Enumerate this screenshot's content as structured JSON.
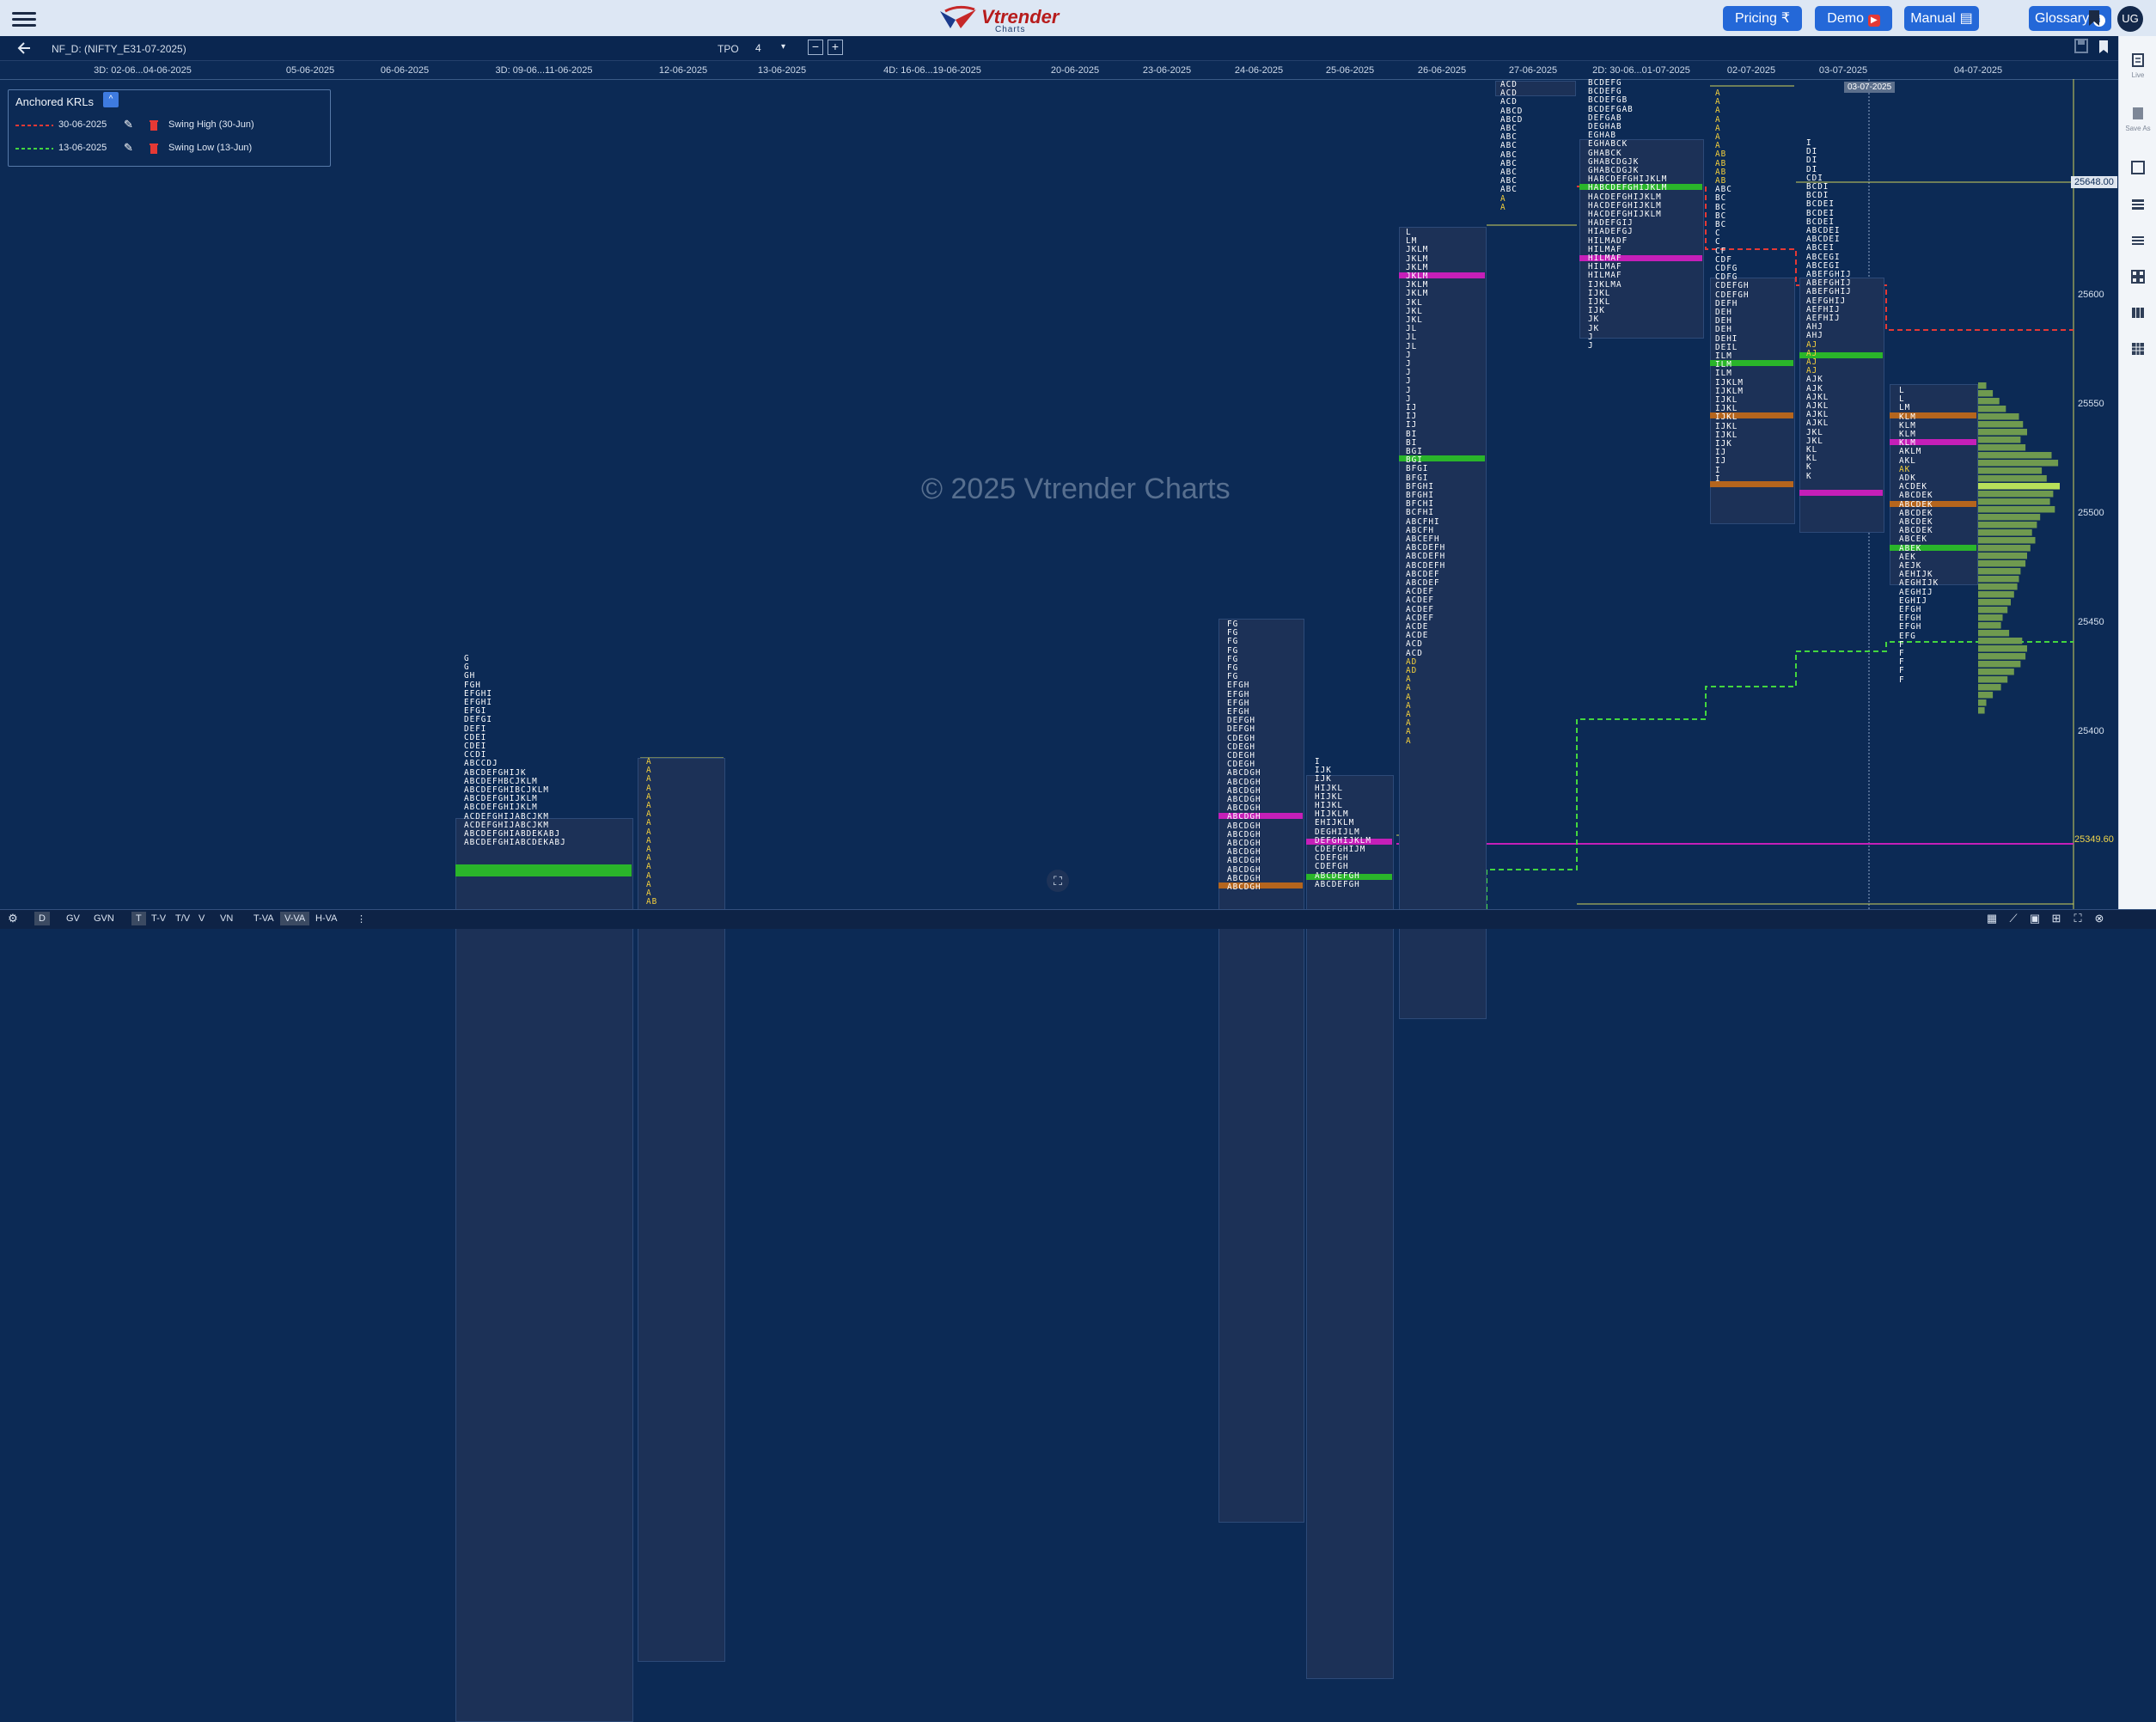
{
  "header": {
    "logo_text": "Vtrender",
    "logo_sub": "Charts",
    "nav_buttons": [
      {
        "label": "Pricing",
        "icon": "rupee-icon",
        "glyph": "₹"
      },
      {
        "label": "Demo",
        "icon": "youtube-icon",
        "glyph": "▶"
      },
      {
        "label": "Manual",
        "icon": "book-icon",
        "glyph": "▤"
      },
      {
        "label": "Glossary",
        "icon": "info-icon",
        "glyph": "i"
      }
    ],
    "avatar": "UG"
  },
  "toolbar": {
    "symbol": "NF_D: (NIFTY_E31-07-2025)",
    "tpo_label": "TPO",
    "tpo_value": "4",
    "dropdown_glyph": "▾",
    "minus": "−",
    "plus": "+"
  },
  "date_axis": [
    "3D: 02-06...04-06-2025",
    "05-06-2025",
    "06-06-2025",
    "3D: 09-06...11-06-2025",
    "12-06-2025",
    "13-06-2025",
    "4D: 16-06...19-06-2025",
    "20-06-2025",
    "23-06-2025",
    "24-06-2025",
    "25-06-2025",
    "26-06-2025",
    "27-06-2025",
    "2D: 30-06...01-07-2025",
    "02-07-2025",
    "03-07-2025",
    "04-07-2025"
  ],
  "cursor_date": "03-07-2025",
  "price_axis": {
    "ticks": [
      "25600",
      "25550",
      "25500",
      "25450",
      "25400"
    ],
    "highlight_prices": [
      "25648.00",
      "25349.60"
    ]
  },
  "anchored_krls": {
    "title": "Anchored KRLs",
    "collapse_glyph": "^",
    "rows": [
      {
        "date": "30-06-2025",
        "label": "Swing High (30-Jun)",
        "color": "#e53935"
      },
      {
        "date": "13-06-2025",
        "label": "Swing Low (13-Jun)",
        "color": "#43d63f"
      }
    ]
  },
  "watermark": "© 2025 Vtrender Charts",
  "right_panel": [
    {
      "icon": "live-icon",
      "label": "Live"
    },
    {
      "icon": "save-as-icon",
      "label": "Save As"
    },
    {
      "icon": "square-icon",
      "label": ""
    },
    {
      "icon": "layout-icon",
      "label": ""
    },
    {
      "icon": "list-icon",
      "label": ""
    },
    {
      "icon": "grid-icon",
      "label": ""
    },
    {
      "icon": "columns-icon",
      "label": ""
    },
    {
      "icon": "table-icon",
      "label": ""
    }
  ],
  "bottom_bar": {
    "buttons": [
      "D",
      "GV",
      "GVN",
      "T",
      "T-V",
      "T/V",
      "V",
      "VN",
      "T-VA",
      "V-VA",
      "H-VA"
    ],
    "active": [
      "D",
      "V-VA"
    ],
    "more": "⋮"
  },
  "profiles": [
    {
      "id": "p-0906",
      "rows": [
        "G",
        "G",
        "GH",
        "FGH",
        "EFGHI",
        "EFGHI",
        "EFGI",
        "DEFGI",
        "DEFI",
        "CDEI",
        "CDEI",
        "CCDI",
        "ABCCDJ",
        "ABCDEFGHIJK",
        "ABCDEFHBCJKLM",
        "ABCDEFGHIBCJKLM",
        "ABCDEFGHIJKLM",
        "ABCDEFGHIJKLM",
        "ACDEFGHIJABCJKM",
        "ACDEFGHIJABCJKM",
        "ABCDEFGHIABDEKABJ",
        "ABCDEFGHIABCDEKABJ"
      ]
    },
    {
      "id": "p-1206",
      "rows": [
        "A",
        "A",
        "A",
        "A",
        "A",
        "A",
        "A",
        "A",
        "A",
        "A",
        "A",
        "A",
        "A",
        "A",
        "A",
        "A",
        "AB",
        "AB",
        "AB"
      ]
    },
    {
      "id": "p-2406",
      "rows": [
        "FG",
        "FG",
        "FG",
        "FG",
        "FG",
        "FG",
        "FG",
        "EFGH",
        "EFGH",
        "EFGH",
        "EFGH",
        "DEFGH",
        "DEFGH",
        "CDEGH",
        "CDEGH",
        "CDEGH",
        "CDEGH",
        "ABCDGH",
        "ABCDGH",
        "ABCDGH",
        "ABCDGH",
        "ABCDGH",
        "ABCDGH",
        "ABCDGH",
        "ABCDGH",
        "ABCDGH",
        "ABCDGH",
        "ABCDGH",
        "ABCDGH",
        "ABCDGH",
        "ABCDGH"
      ]
    },
    {
      "id": "p-2506",
      "rows": [
        "I",
        "IJK",
        "IJK",
        "HIJKL",
        "HIJKL",
        "HIJKL",
        "HIJKLM",
        "EHIJKLM",
        "DEGHIJLM",
        "DEFGHIJKLM",
        "CDEFGHIJM",
        "CDEFGH",
        "CDEFGH",
        "ABCDEFGH",
        "ABCDEFGH"
      ]
    },
    {
      "id": "p-2606",
      "rows": [
        "L",
        "LM",
        "JKLM",
        "JKLM",
        "JKLM",
        "JKLM",
        "JKLM",
        "JKLM",
        "JKL",
        "JKL",
        "JKL",
        "JL",
        "JL",
        "JL",
        "J",
        "J",
        "J",
        "J",
        "J",
        "J",
        "IJ",
        "IJ",
        "IJ",
        "BI",
        "BI",
        "BGI",
        "BGI",
        "BFGI",
        "BFGI",
        "BFGHI",
        "BFGHI",
        "BFCHI",
        "BCFHI",
        "ABCFHI",
        "ABCFH",
        "ABCEFH",
        "ABCDEFH",
        "ABCDEFH",
        "ABCDEFH",
        "ABCDEF",
        "ABCDEF",
        "ACDEF",
        "ACDEF",
        "ACDEF",
        "ACDEF",
        "ACDE",
        "ACDE",
        "ACD",
        "ACD",
        "AD",
        "AD",
        "A",
        "A",
        "A",
        "A",
        "A",
        "A",
        "A",
        "A"
      ]
    },
    {
      "id": "p-2706",
      "rows": [
        "ACD",
        "ACD",
        "ACD",
        "ABCD",
        "ABCD",
        "ABC",
        "ABC",
        "ABC",
        "ABC",
        "ABC",
        "ABC",
        "ABC",
        "ABC",
        "A",
        "A"
      ]
    },
    {
      "id": "p-3006",
      "rows": [
        "BCDEFG",
        "BCDEFG",
        "BCDEFGB",
        "BCDEFGAB",
        "DEFGAB",
        "DEGHAB",
        "EGHAB",
        "EGHABCK",
        "GHABCK",
        "GHABCDGJK",
        "GHABCDGJK",
        "HABCDEFGHIJKLM",
        "HABCDEFGHIJKLM",
        "HACDEFGHIJKLM",
        "HACDEFGHIJKLM",
        "HACDEFGHIJKLM",
        "HADEFGIJ",
        "HIADEFGJ",
        "HILMADF",
        "HILMAF",
        "HILMAF",
        "HILMAF",
        "HILMAF",
        "IJKLMA",
        "IJKL",
        "IJKL",
        "IJK",
        "JK",
        "JK",
        "J",
        "J"
      ]
    },
    {
      "id": "p-0207",
      "rows": [
        "A",
        "A",
        "A",
        "A",
        "A",
        "A",
        "A",
        "AB",
        "AB",
        "AB",
        "AB",
        "ABC",
        "BC",
        "BC",
        "BC",
        "BC",
        "C",
        "C",
        "CF",
        "CDF",
        "CDFG",
        "CDFG",
        "CDEFGH",
        "CDEFGH",
        "DEFH",
        "DEH",
        "DEH",
        "DEH",
        "DEHI",
        "DEIL",
        "ILM",
        "ILM",
        "ILM",
        "IJKLM",
        "IJKLM",
        "IJKL",
        "IJKL",
        "IJKL",
        "IJKL",
        "IJKL",
        "IJK",
        "IJ",
        "IJ",
        "I",
        "I"
      ]
    },
    {
      "id": "p-0307",
      "rows": [
        "I",
        "DI",
        "DI",
        "DI",
        "CDI",
        "BCDI",
        "BCDI",
        "BCDEI",
        "BCDEI",
        "BCDEI",
        "ABCDEI",
        "ABCDEI",
        "ABCEI",
        "ABCEGI",
        "ABCEGI",
        "ABEFGHIJ",
        "ABEFGHIJ",
        "ABEFGHIJ",
        "AEFGHIJ",
        "AEFHIJ",
        "AEFHIJ",
        "AHJ",
        "AHJ",
        "AJ",
        "AJ",
        "AJ",
        "AJ",
        "AJK",
        "AJK",
        "AJKL",
        "AJKL",
        "AJKL",
        "AJKL",
        "JKL",
        "JKL",
        "KL",
        "KL",
        "K",
        "K"
      ]
    },
    {
      "id": "p-0407",
      "rows": [
        "L",
        "L",
        "LM",
        "KLM",
        "KLM",
        "KLM",
        "KLM",
        "AKLM",
        "AKL",
        "AK",
        "ADK",
        "ACDEK",
        "ABCDEK",
        "ABCDEK",
        "ABCDEK",
        "ABCDEK",
        "ABCDEK",
        "ABCEK",
        "ABEK",
        "AEK",
        "AEJK",
        "AEHIJK",
        "AEGHIJK",
        "AEGHIJ",
        "EGHIJ",
        "EFGH",
        "EFGH",
        "EFGH",
        "EFG",
        "F",
        "F",
        "F",
        "F",
        "F"
      ]
    }
  ]
}
